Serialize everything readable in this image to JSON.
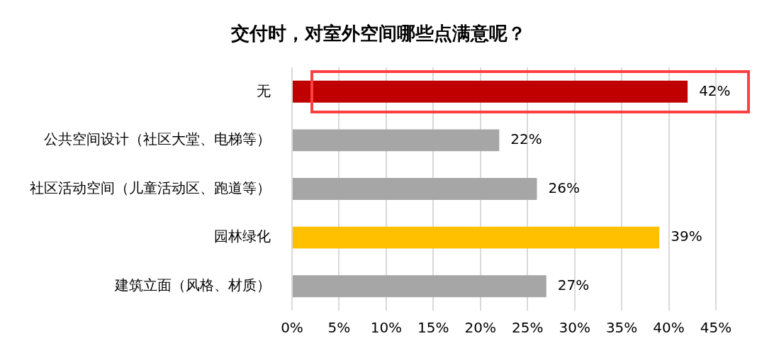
{
  "chart_data": {
    "type": "bar",
    "orientation": "horizontal",
    "title": "交付时，对室外空间哪些点满意呢？",
    "categories": [
      "无",
      "公共空间设计（社区大堂、电梯等）",
      "社区活动空间（儿童活动区、跑道等）",
      "园林绿化",
      "建筑立面（风格、材质）"
    ],
    "values": [
      42,
      22,
      26,
      39,
      27
    ],
    "colors": [
      "#c00000",
      "#a6a6a6",
      "#a6a6a6",
      "#ffc000",
      "#a6a6a6"
    ],
    "value_labels": [
      "42%",
      "22%",
      "26%",
      "39%",
      "27%"
    ],
    "xlim": [
      0,
      45
    ],
    "xticks": [
      {
        "value": 0,
        "label": "0%"
      },
      {
        "value": 5,
        "label": "5%"
      },
      {
        "value": 10,
        "label": "10%"
      },
      {
        "value": 15,
        "label": "15%"
      },
      {
        "value": 20,
        "label": "20%"
      },
      {
        "value": 25,
        "label": "25%"
      },
      {
        "value": 30,
        "label": "30%"
      },
      {
        "value": 35,
        "label": "35%"
      },
      {
        "value": 40,
        "label": "40%"
      },
      {
        "value": 45,
        "label": "45%"
      }
    ],
    "grid": "x",
    "legend": false
  }
}
